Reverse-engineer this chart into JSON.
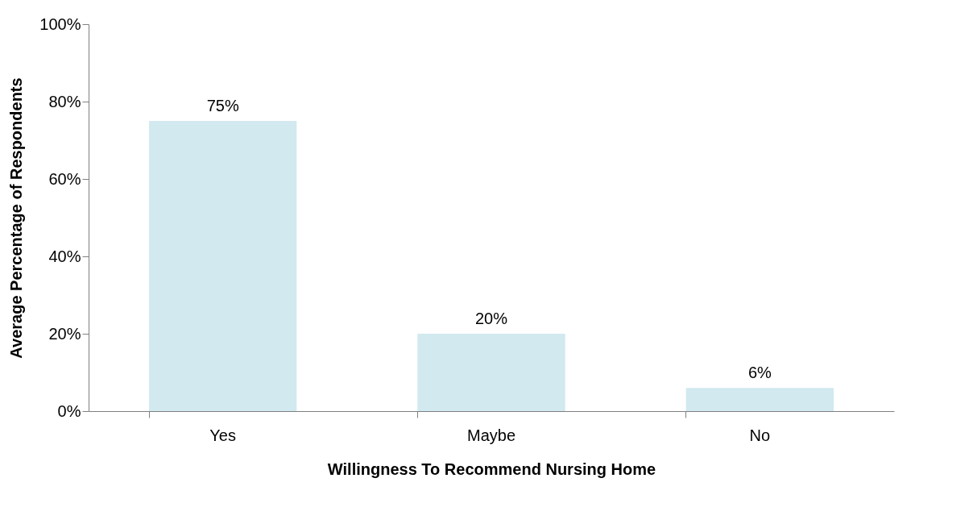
{
  "chart_data": {
    "type": "bar",
    "xlabel": "Willingness To Recommend Nursing Home",
    "ylabel": "Average Percentage of Respondents",
    "categories": [
      "Yes",
      "Maybe",
      "No"
    ],
    "values": [
      75,
      20,
      6
    ],
    "value_labels": [
      "75%",
      "20%",
      "6%"
    ],
    "color": "#d1e9ef",
    "ylim": [
      0,
      100
    ],
    "yticks": [
      {
        "value": 0,
        "label": "0%"
      },
      {
        "value": 20,
        "label": "20%"
      },
      {
        "value": 40,
        "label": "40%"
      },
      {
        "value": 60,
        "label": "60%"
      },
      {
        "value": 80,
        "label": "80%"
      },
      {
        "value": 100,
        "label": "100%"
      }
    ],
    "grid": false
  }
}
